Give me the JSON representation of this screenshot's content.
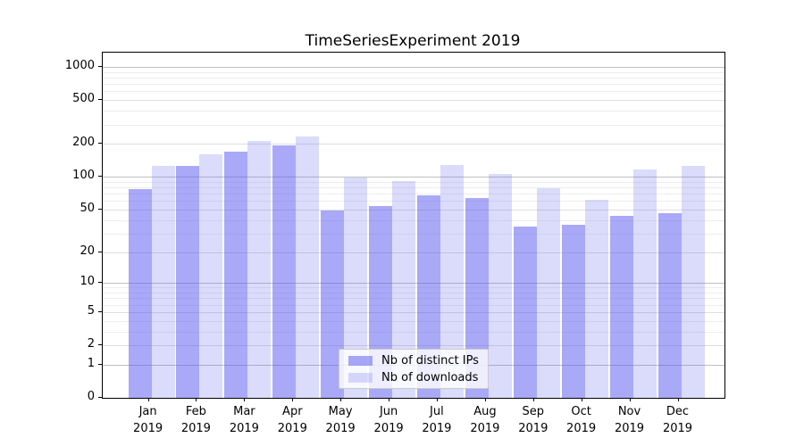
{
  "chart_data": {
    "type": "bar",
    "title": "TimeSeriesExperiment 2019",
    "categories": [
      "Jan",
      "Feb",
      "Mar",
      "Apr",
      "May",
      "Jun",
      "Jul",
      "Aug",
      "Sep",
      "Oct",
      "Nov",
      "Dec"
    ],
    "year_label": "2019",
    "series": [
      {
        "name": "Nb of distinct IPs",
        "color_hex": "#a9a9f6",
        "css_color": "rgba(90,90,240,0.52)",
        "values": [
          77,
          126,
          170,
          192,
          49,
          54,
          68,
          64,
          35,
          36,
          44,
          46
        ]
      },
      {
        "name": "Nb of downloads",
        "color_hex": "#dadaf9",
        "css_color": "rgba(90,90,240,0.22)",
        "values": [
          125,
          160,
          211,
          233,
          98,
          91,
          128,
          107,
          78,
          62,
          117,
          126
        ]
      }
    ],
    "y_scale": "symlog",
    "y_max": 1348,
    "y_ticks": [
      0,
      1,
      2,
      5,
      10,
      20,
      50,
      100,
      200,
      500,
      1000
    ],
    "y_minor_gridlines": [
      3,
      4,
      6,
      7,
      8,
      9,
      30,
      40,
      60,
      70,
      80,
      90,
      300,
      400,
      600,
      700,
      800,
      900
    ],
    "xlabel": "",
    "ylabel": "",
    "grid": "on",
    "legend_position": "lower center"
  }
}
